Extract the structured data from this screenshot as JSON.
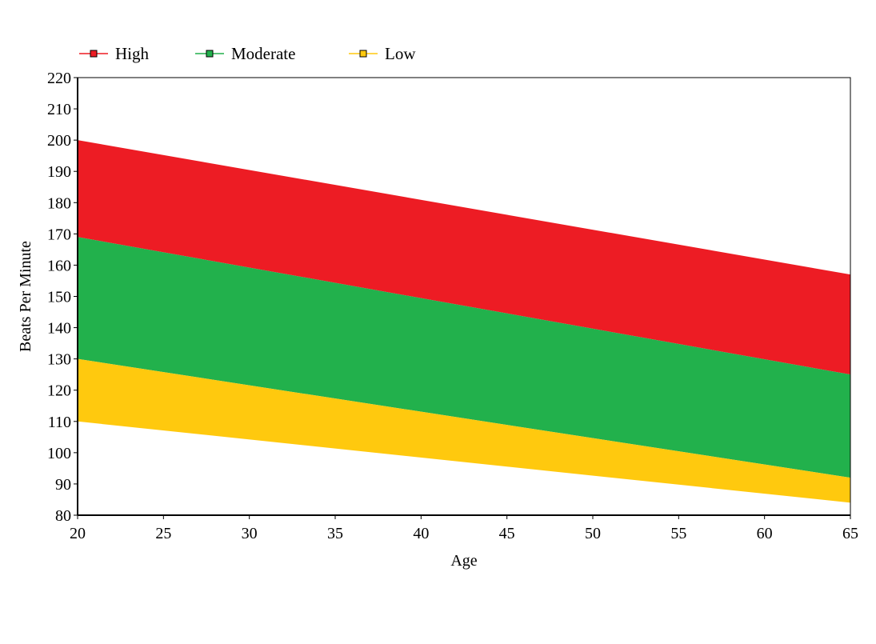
{
  "chart_data": {
    "type": "area",
    "title": "",
    "xlabel": "Age",
    "ylabel": "Beats Per Minute",
    "xlim": [
      20,
      65
    ],
    "ylim": [
      80,
      220
    ],
    "xticks": [
      20,
      25,
      30,
      35,
      40,
      45,
      50,
      55,
      60,
      65
    ],
    "yticks": [
      80,
      90,
      100,
      110,
      120,
      130,
      140,
      150,
      160,
      170,
      180,
      190,
      200,
      210,
      220
    ],
    "grid": false,
    "legend_position": "top-left",
    "series": [
      {
        "name": "High",
        "color": "#ED1C24",
        "x": [
          20,
          65
        ],
        "lower": [
          169,
          125
        ],
        "upper": [
          200,
          157
        ]
      },
      {
        "name": "Moderate",
        "color": "#22B14C",
        "x": [
          20,
          65
        ],
        "lower": [
          130,
          92
        ],
        "upper": [
          169,
          125
        ]
      },
      {
        "name": "Low",
        "color": "#FFC90E",
        "x": [
          20,
          65
        ],
        "lower": [
          110,
          84
        ],
        "upper": [
          130,
          92
        ]
      }
    ]
  }
}
